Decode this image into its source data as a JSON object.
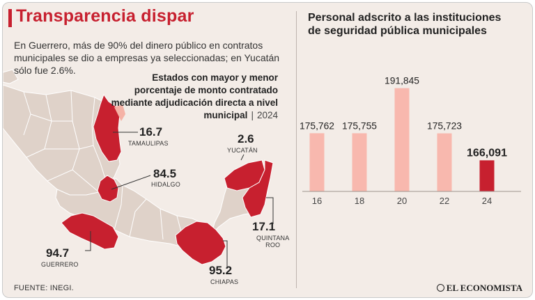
{
  "colors": {
    "accent": "#c7202f",
    "bar_light": "#f8b8ae",
    "bar_dark": "#c7202f",
    "map_base": "#dfd2c9",
    "map_highlight": "#c7202f"
  },
  "infographic": {
    "title": "Transparencia dispar",
    "intro": "En Guerrero, más de 90% del dinero público en contratos municipales se dio a empresas ya seleccionadas; en Yucatán sólo fue 2.6%.",
    "map_subtitle": "Estados con mayor y menor porcentaje de monto contratado mediante adjudicación directa a nivel municipal",
    "map_year": "2024",
    "source": "FUENTE: INEGI.",
    "logo_text": "EL ECONOMISTA"
  },
  "states": [
    {
      "name": "TAMAULIPAS",
      "value": "16.7"
    },
    {
      "name": "HIDALGO",
      "value": "84.5"
    },
    {
      "name": "GUERRERO",
      "value": "94.7"
    },
    {
      "name": "CHIAPAS",
      "value": "95.2"
    },
    {
      "name": "YUCATÁN",
      "value": "2.6"
    },
    {
      "name": "QUINTANA",
      "name2": "ROO",
      "value": "17.1"
    }
  ],
  "chart_data": {
    "type": "bar",
    "title": "Personal adscrito a las instituciones de seguridad pública municipales",
    "categories": [
      "16",
      "18",
      "20",
      "22",
      "24"
    ],
    "values": [
      175762,
      175755,
      191845,
      175723,
      166091
    ],
    "labels": [
      "175,762",
      "175,755",
      "191,845",
      "175,723",
      "166,091"
    ],
    "highlight_index": 4,
    "xlabel": "",
    "ylabel": "",
    "ylim": [
      155000,
      192000
    ],
    "grid": false,
    "legend": "none"
  }
}
